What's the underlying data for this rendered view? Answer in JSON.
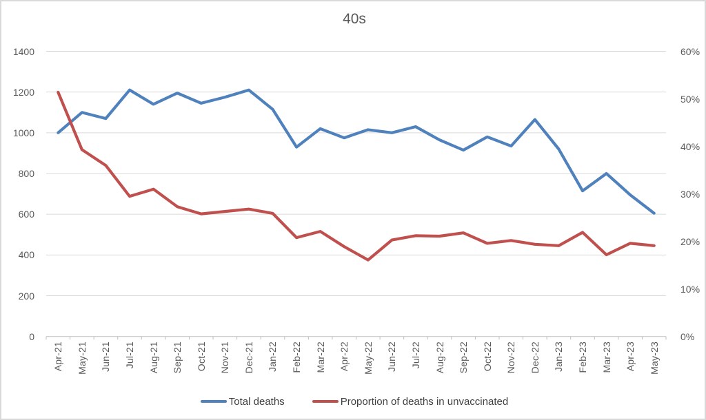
{
  "chart_data": {
    "type": "line",
    "title": "40s",
    "categories": [
      "Apr-21",
      "May-21",
      "Jun-21",
      "Jul-21",
      "Aug-21",
      "Sep-21",
      "Oct-21",
      "Nov-21",
      "Dec-21",
      "Jan-22",
      "Feb-22",
      "Mar-22",
      "Apr-22",
      "May-22",
      "Jun-22",
      "Jul-22",
      "Aug-22",
      "Sep-22",
      "Oct-22",
      "Nov-22",
      "Dec-22",
      "Jan-23",
      "Feb-23",
      "Mar-23",
      "Apr-23",
      "May-23"
    ],
    "series": [
      {
        "name": "Total deaths",
        "axis": "left",
        "color": "#4F81BD",
        "values": [
          1000,
          1100,
          1070,
          1210,
          1140,
          1195,
          1145,
          1175,
          1210,
          1115,
          930,
          1020,
          975,
          1015,
          1000,
          1030,
          965,
          915,
          980,
          935,
          1065,
          920,
          715,
          800,
          695,
          605
        ]
      },
      {
        "name": "Proportion of deaths in unvaccinated",
        "axis": "right",
        "color": "#C0504D",
        "values": [
          51.4,
          39.3,
          36,
          29.5,
          31,
          27.3,
          25.8,
          26.3,
          26.8,
          25.9,
          20.8,
          22.1,
          18.9,
          16.1,
          20.3,
          21.2,
          21.1,
          21.8,
          19.6,
          20.2,
          19.4,
          19.1,
          21.9,
          17.2,
          19.6,
          19.1
        ]
      }
    ],
    "left_axis": {
      "min": 0,
      "max": 1400,
      "step": 200,
      "tick_labels": [
        "1400",
        "1200",
        "1000",
        "800",
        "600",
        "400",
        "200",
        "0"
      ]
    },
    "right_axis": {
      "min": 0,
      "max": 60,
      "step": 10,
      "tick_labels": [
        "60%",
        "50%",
        "40%",
        "30%",
        "20%",
        "10%",
        "0%"
      ]
    },
    "grid": true,
    "legend_position": "bottom"
  },
  "colors": {
    "axis_text": "#595959",
    "legend_text": "#404040",
    "gridline": "#D9D9D9",
    "axis_line": "#BFBFBF",
    "series_blue": "#4F81BD",
    "series_red": "#C0504D"
  }
}
